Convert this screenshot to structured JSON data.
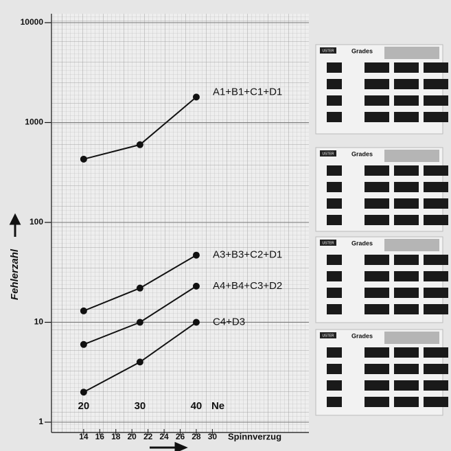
{
  "chart_data": {
    "type": "line",
    "x_label": "Spinnverzug",
    "y_label": "Fehlerzahl",
    "x": [
      14,
      21,
      28
    ],
    "series": [
      {
        "name": "A1+B1+C1+D1",
        "color": "#111111",
        "values": [
          430,
          600,
          1800
        ]
      },
      {
        "name": "A3+B3+C2+D1",
        "color": "#111111",
        "values": [
          13,
          22,
          47
        ]
      },
      {
        "name": "A4+B4+C3+D2",
        "color": "#111111",
        "values": [
          6,
          10,
          23
        ]
      },
      {
        "name": "C4+D3",
        "color": "#111111",
        "values": [
          2,
          4,
          10
        ]
      }
    ],
    "xlim": [
      10,
      42
    ],
    "xticks": [
      14,
      16,
      18,
      20,
      22,
      24,
      26,
      28,
      30
    ],
    "ylim": [
      1,
      10000
    ],
    "yticks": [
      1,
      10,
      100,
      1000,
      10000
    ],
    "log_y": true,
    "grid": true,
    "ne": {
      "label": "Ne",
      "values": [
        20,
        30,
        40
      ],
      "x": [
        14,
        21,
        28
      ]
    }
  },
  "thumbnails": [
    {
      "badge": "USTER",
      "title": "Grades"
    },
    {
      "badge": "USTER",
      "title": "Grades"
    },
    {
      "badge": "USTER",
      "title": "Grades"
    },
    {
      "badge": "USTER",
      "title": "Grades"
    }
  ]
}
